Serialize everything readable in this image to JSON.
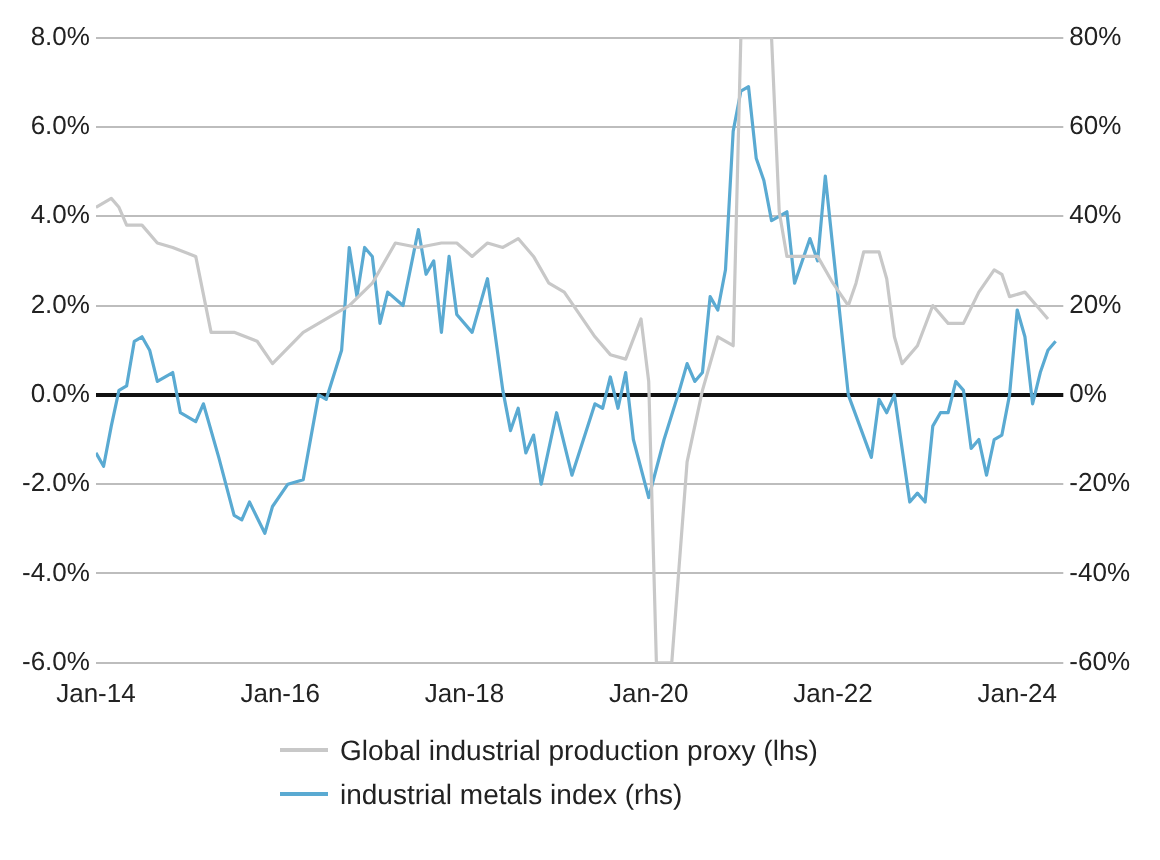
{
  "chart_data": {
    "type": "line",
    "legend": "bottom",
    "grid": "y",
    "marker": "none",
    "line_style": "solid",
    "xlim": [
      "2014-01",
      "2024-07"
    ],
    "xticks": [
      {
        "value": "2014-01",
        "label": "Jan-14"
      },
      {
        "value": "2016-01",
        "label": "Jan-16"
      },
      {
        "value": "2018-01",
        "label": "Jan-18"
      },
      {
        "value": "2020-01",
        "label": "Jan-20"
      },
      {
        "value": "2022-01",
        "label": "Jan-22"
      },
      {
        "value": "2024-01",
        "label": "Jan-24"
      }
    ],
    "ylim": [
      -6,
      8
    ],
    "yticks": [
      {
        "value": -6,
        "label": "-6.0%"
      },
      {
        "value": -4,
        "label": "-4.0%"
      },
      {
        "value": -2,
        "label": "-2.0%"
      },
      {
        "value": 0,
        "label": "0.0%"
      },
      {
        "value": 2,
        "label": "2.0%"
      },
      {
        "value": 4,
        "label": "4.0%"
      },
      {
        "value": 6,
        "label": "6.0%"
      },
      {
        "value": 8,
        "label": "8.0%"
      }
    ],
    "y2lim": [
      -60,
      80
    ],
    "y2ticks": [
      {
        "value": -60,
        "label": "-60%"
      },
      {
        "value": -40,
        "label": "-40%"
      },
      {
        "value": -20,
        "label": "-20%"
      },
      {
        "value": 0,
        "label": "0%"
      },
      {
        "value": 20,
        "label": "20%"
      },
      {
        "value": 40,
        "label": "40%"
      },
      {
        "value": 60,
        "label": "60%"
      },
      {
        "value": 80,
        "label": "80%"
      }
    ],
    "series": [
      {
        "name": "Global industrial production proxy (lhs)",
        "color": "#c8c8c8",
        "axis": "y",
        "x": [
          "2014-01",
          "2014-03",
          "2014-04",
          "2014-05",
          "2014-07",
          "2014-09",
          "2014-11",
          "2015-02",
          "2015-04",
          "2015-07",
          "2015-10",
          "2015-12",
          "2016-04",
          "2016-06",
          "2016-08",
          "2016-10",
          "2017-01",
          "2017-04",
          "2017-07",
          "2017-10",
          "2017-12",
          "2018-02",
          "2018-04",
          "2018-06",
          "2018-08",
          "2018-10",
          "2018-12",
          "2019-02",
          "2019-06",
          "2019-08",
          "2019-10",
          "2019-12",
          "2020-01",
          "2020-02",
          "2020-04",
          "2020-06",
          "2020-08",
          "2020-10",
          "2020-12",
          "2021-01",
          "2021-05",
          "2021-06",
          "2021-07",
          "2021-11",
          "2022-01",
          "2022-03",
          "2022-04",
          "2022-05",
          "2022-07",
          "2022-08",
          "2022-09",
          "2022-10",
          "2022-12",
          "2023-02",
          "2023-04",
          "2023-06",
          "2023-08",
          "2023-10",
          "2023-11",
          "2023-12",
          "2024-02",
          "2024-04",
          "2024-05"
        ],
        "values": [
          4.2,
          4.4,
          4.2,
          3.8,
          3.8,
          3.4,
          3.3,
          3.1,
          1.4,
          1.4,
          1.2,
          0.7,
          1.4,
          1.6,
          1.8,
          2.0,
          2.5,
          3.4,
          3.3,
          3.4,
          3.4,
          3.1,
          3.4,
          3.3,
          3.5,
          3.1,
          2.5,
          2.3,
          1.3,
          0.9,
          0.8,
          1.7,
          0.3,
          -6,
          -6,
          -1.5,
          0.1,
          1.3,
          1.1,
          8,
          8,
          4.1,
          3.1,
          3.1,
          2.5,
          2.0,
          2.5,
          3.2,
          3.2,
          2.6,
          1.3,
          0.7,
          1.1,
          2.0,
          1.6,
          1.6,
          2.3,
          2.8,
          2.7,
          2.2,
          2.3,
          1.9,
          1.7
        ]
      },
      {
        "name": "industrial metals index (rhs)",
        "color": "#5aaad2",
        "axis": "y2",
        "x": [
          "2014-01",
          "2014-02",
          "2014-03",
          "2014-04",
          "2014-05",
          "2014-06",
          "2014-07",
          "2014-08",
          "2014-09",
          "2014-11",
          "2014-12",
          "2015-02",
          "2015-03",
          "2015-05",
          "2015-07",
          "2015-08",
          "2015-09",
          "2015-11",
          "2015-12",
          "2016-02",
          "2016-04",
          "2016-06",
          "2016-07",
          "2016-09",
          "2016-10",
          "2016-11",
          "2016-12",
          "2017-01",
          "2017-02",
          "2017-03",
          "2017-05",
          "2017-07",
          "2017-08",
          "2017-09",
          "2017-10",
          "2017-11",
          "2017-12",
          "2018-02",
          "2018-04",
          "2018-06",
          "2018-07",
          "2018-08",
          "2018-09",
          "2018-10",
          "2018-11",
          "2019-01",
          "2019-03",
          "2019-06",
          "2019-07",
          "2019-08",
          "2019-09",
          "2019-10",
          "2019-11",
          "2020-01",
          "2020-03",
          "2020-05",
          "2020-06",
          "2020-07",
          "2020-08",
          "2020-09",
          "2020-10",
          "2020-11",
          "2020-12",
          "2021-01",
          "2021-02",
          "2021-03",
          "2021-04",
          "2021-05",
          "2021-07",
          "2021-08",
          "2021-10",
          "2021-11",
          "2021-12",
          "2022-03",
          "2022-06",
          "2022-07",
          "2022-08",
          "2022-09",
          "2022-11",
          "2022-12",
          "2023-01",
          "2023-02",
          "2023-03",
          "2023-04",
          "2023-05",
          "2023-06",
          "2023-07",
          "2023-08",
          "2023-09",
          "2023-10",
          "2023-11",
          "2023-12",
          "2024-01",
          "2024-02",
          "2024-03",
          "2024-04",
          "2024-05",
          "2024-06"
        ],
        "values": [
          -13,
          -16,
          -7,
          1,
          2,
          12,
          13,
          10,
          3,
          5,
          -4,
          -6,
          -2,
          -14,
          -27,
          -28,
          -24,
          -31,
          -25,
          -20,
          -19,
          0,
          -1,
          10,
          33,
          22,
          33,
          31,
          16,
          23,
          20,
          37,
          27,
          30,
          14,
          31,
          18,
          14,
          26,
          1,
          -8,
          -3,
          -13,
          -9,
          -20,
          -4,
          -18,
          -2,
          -3,
          4,
          -3,
          5,
          -10,
          -23,
          -10,
          1,
          7,
          3,
          5,
          22,
          19,
          28,
          59,
          68,
          69,
          53,
          48,
          39,
          41,
          25,
          35,
          30,
          49,
          0,
          -14,
          -1,
          -4,
          0,
          -24,
          -22,
          -24,
          -7,
          -4,
          -4,
          3,
          1,
          -12,
          -10,
          -18,
          -10,
          -9,
          0,
          19,
          13,
          -2,
          5,
          10,
          12
        ]
      }
    ]
  }
}
